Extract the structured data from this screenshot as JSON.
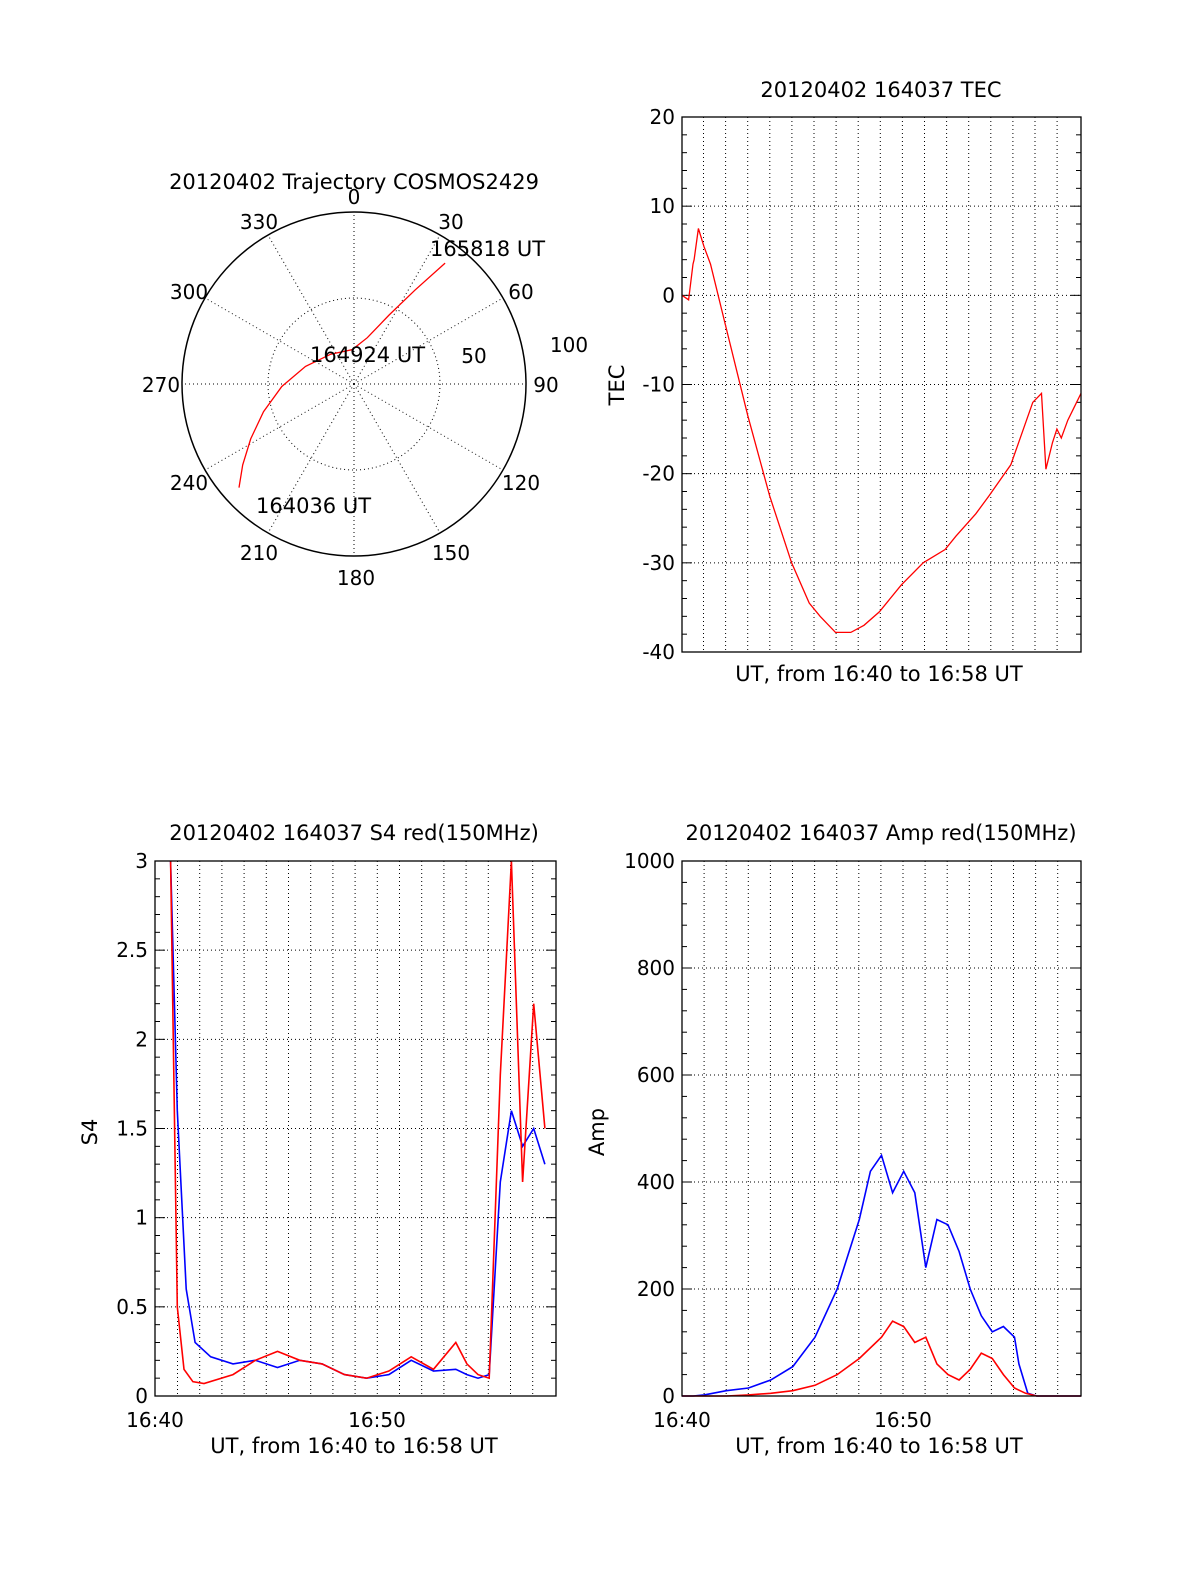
{
  "colors": {
    "red": "#ff0000",
    "blue": "#0000ff",
    "axis": "#000000",
    "background": "#ffffff"
  },
  "chart_data": [
    {
      "type": "polar-trajectory",
      "title": "20120402 Trajectory COSMOS2429",
      "radial_ticks": [
        "50",
        "100"
      ],
      "radial_max": 100,
      "azimuth_labels": [
        "0",
        "30",
        "60",
        "90",
        "120",
        "150",
        "180",
        "210",
        "240",
        "270",
        "300",
        "330"
      ],
      "grid": true,
      "annotations": [
        "165818 UT",
        "164924 UT",
        "164036 UT"
      ],
      "series": [
        {
          "color": "#ff0000",
          "points": [
            [
              228,
              90
            ],
            [
              234,
              80
            ],
            [
              242,
              68
            ],
            [
              253,
              55
            ],
            [
              268,
              42
            ],
            [
              290,
              30
            ],
            [
              322,
              22
            ],
            [
              357,
              20
            ],
            [
              16,
              28
            ],
            [
              27,
              45
            ],
            [
              33,
              65
            ],
            [
              37,
              88
            ]
          ]
        }
      ]
    },
    {
      "type": "line",
      "title": "20120402 164037 TEC",
      "xlabel": "UT, from 16:40 to 16:58 UT",
      "ylabel": "TEC",
      "xlim": [
        0,
        18.2
      ],
      "ylim": [
        -40,
        20
      ],
      "yticks": [
        "-40",
        "-30",
        "-20",
        "-10",
        "0",
        "10",
        "20"
      ],
      "grid": true,
      "series": [
        {
          "color": "#ff0000",
          "x": [
            0.0,
            0.3,
            0.5,
            0.55,
            0.75,
            1.0,
            1.3,
            2.0,
            3.0,
            4.0,
            5.0,
            5.8,
            6.3,
            7.0,
            7.7,
            8.3,
            9.0,
            10.0,
            11.0,
            12.0,
            12.5,
            13.4,
            14.0,
            15.0,
            16.0,
            16.4,
            16.6,
            16.9,
            17.1,
            17.3,
            17.6,
            17.9,
            18.2
          ],
          "y": [
            0,
            -0.5,
            3.5,
            4.0,
            7.5,
            5.5,
            3.5,
            -3.5,
            -13.5,
            -22.5,
            -30.0,
            -34.5,
            -36.0,
            -37.8,
            -37.8,
            -37.0,
            -35.5,
            -32.5,
            -30.0,
            -28.5,
            -27.0,
            -24.5,
            -22.5,
            -19.0,
            -12.0,
            -11.0,
            -19.5,
            -16.5,
            -15.0,
            -16.0,
            -14.0,
            -12.5,
            -11.0
          ]
        }
      ]
    },
    {
      "type": "line",
      "title": "20120402 164037 S4 red(150MHz)",
      "xlabel": "UT, from 16:40 to 16:58 UT",
      "ylabel": "S4",
      "xlim": [
        0,
        18
      ],
      "ylim": [
        0,
        3
      ],
      "xticks": [
        "16:40",
        "16:50"
      ],
      "yticks": [
        "0",
        "0.5",
        "1",
        "1.5",
        "2",
        "2.5",
        "3"
      ],
      "grid": true,
      "series": [
        {
          "color": "#0000ff",
          "x": [
            0.7,
            1.0,
            1.4,
            1.8,
            2.5,
            3.5,
            4.5,
            5.5,
            6.5,
            7.5,
            8.5,
            9.5,
            10.5,
            11.5,
            12.5,
            13.5,
            14.0,
            14.5,
            15.0,
            15.5,
            16.0,
            16.5,
            17.0,
            17.5
          ],
          "y": [
            3.0,
            1.6,
            0.6,
            0.3,
            0.22,
            0.18,
            0.2,
            0.16,
            0.2,
            0.18,
            0.12,
            0.1,
            0.12,
            0.2,
            0.14,
            0.15,
            0.12,
            0.1,
            0.12,
            1.2,
            1.6,
            1.4,
            1.5,
            1.3
          ]
        },
        {
          "color": "#ff0000",
          "x": [
            0.7,
            1.0,
            1.3,
            1.7,
            2.2,
            3.5,
            4.5,
            5.5,
            6.5,
            7.5,
            8.5,
            9.5,
            10.5,
            11.5,
            12.5,
            13.5,
            14.0,
            14.5,
            15.0,
            15.5,
            16.0,
            16.5,
            17.0,
            17.5
          ],
          "y": [
            3.0,
            0.5,
            0.15,
            0.08,
            0.07,
            0.12,
            0.2,
            0.25,
            0.2,
            0.18,
            0.12,
            0.1,
            0.14,
            0.22,
            0.15,
            0.3,
            0.18,
            0.12,
            0.1,
            1.8,
            3.0,
            1.2,
            2.2,
            1.5
          ]
        }
      ]
    },
    {
      "type": "line",
      "title": "20120402 164037 Amp red(150MHz)",
      "xlabel": "UT, from 16:40 to 16:58 UT",
      "ylabel": "Amp",
      "xlim": [
        0,
        18
      ],
      "ylim": [
        0,
        1000
      ],
      "xticks": [
        "16:40",
        "16:50"
      ],
      "yticks": [
        "0",
        "200",
        "400",
        "600",
        "800",
        "1000"
      ],
      "grid": true,
      "series": [
        {
          "color": "#0000ff",
          "x": [
            0.0,
            0.5,
            1.0,
            2.0,
            3.0,
            4.0,
            5.0,
            6.0,
            7.0,
            8.0,
            8.5,
            9.0,
            9.5,
            10.0,
            10.5,
            11.0,
            11.5,
            12.0,
            12.5,
            13.0,
            13.5,
            14.0,
            14.5,
            15.0,
            15.2,
            15.6,
            16.0,
            17.0,
            18.0
          ],
          "y": [
            0,
            0,
            2,
            10,
            15,
            30,
            55,
            110,
            200,
            330,
            420,
            450,
            380,
            420,
            380,
            240,
            330,
            320,
            270,
            200,
            150,
            120,
            130,
            110,
            60,
            5,
            0,
            0,
            0
          ]
        },
        {
          "color": "#ff0000",
          "x": [
            0.0,
            2.0,
            3.0,
            4.0,
            5.0,
            6.0,
            7.0,
            8.0,
            9.0,
            9.5,
            10.0,
            10.5,
            11.0,
            11.5,
            12.0,
            12.5,
            13.0,
            13.5,
            14.0,
            14.5,
            15.0,
            15.5,
            16.0,
            18.0
          ],
          "y": [
            0,
            0,
            2,
            5,
            10,
            20,
            40,
            70,
            110,
            140,
            130,
            100,
            110,
            60,
            40,
            30,
            50,
            80,
            70,
            40,
            15,
            5,
            0,
            0
          ]
        }
      ]
    }
  ]
}
